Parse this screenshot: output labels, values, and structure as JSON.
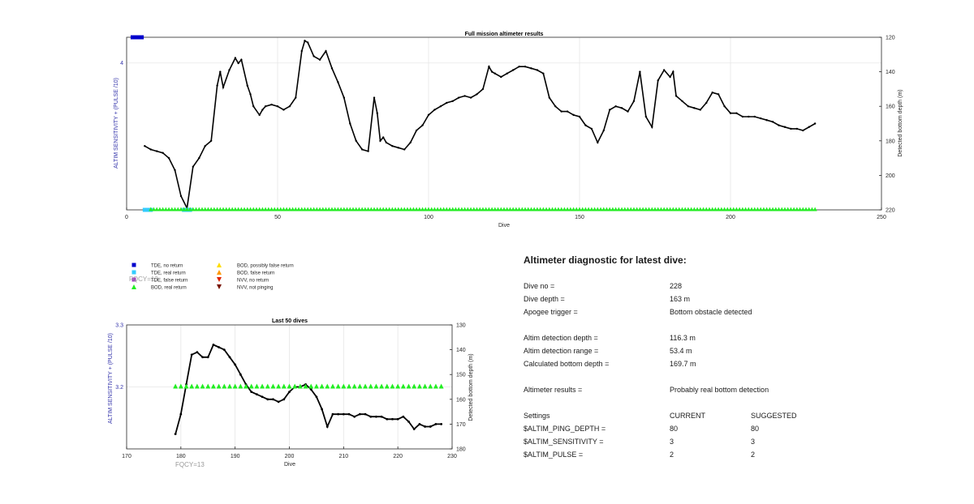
{
  "chart_data": [
    {
      "type": "line",
      "title": "Full mission altimeter results",
      "xlabel": "Dive",
      "ylabel_left": "ALTIM SENSITIVITY + (PULSE /10)",
      "ylabel_right": "Detected bottom depth (m)",
      "xlim": [
        0,
        250
      ],
      "xticks": [
        0,
        50,
        100,
        150,
        200,
        250
      ],
      "ylim_left": [
        0,
        4.7
      ],
      "yticks_left": [
        4
      ],
      "ylim_right": [
        220,
        120
      ],
      "yticks_right": [
        120,
        140,
        160,
        180,
        200,
        220
      ],
      "grid": true,
      "series": [
        {
          "name": "Detected bottom depth",
          "axis": "right",
          "color": "#000000",
          "x": [
            6,
            8,
            10,
            12,
            14,
            16,
            18,
            20,
            22,
            24,
            26,
            28,
            30,
            31,
            32,
            34,
            36,
            37,
            38,
            40,
            41,
            42,
            44,
            45,
            46,
            48,
            50,
            52,
            54,
            56,
            58,
            59,
            60,
            62,
            64,
            66,
            68,
            70,
            72,
            74,
            76,
            78,
            80,
            82,
            83,
            84,
            85,
            86,
            88,
            90,
            92,
            94,
            96,
            98,
            100,
            102,
            104,
            106,
            108,
            110,
            112,
            114,
            116,
            118,
            120,
            121,
            122,
            124,
            126,
            128,
            130,
            132,
            134,
            136,
            138,
            140,
            142,
            144,
            146,
            148,
            150,
            152,
            154,
            156,
            158,
            160,
            162,
            164,
            166,
            168,
            170,
            172,
            174,
            176,
            178,
            180,
            181,
            182,
            184,
            186,
            188,
            190,
            192,
            194,
            196,
            198,
            200,
            202,
            204,
            206,
            208,
            210,
            212,
            214,
            216,
            218,
            220,
            222,
            224,
            226,
            228
          ],
          "y": [
            183,
            185,
            186,
            187,
            190,
            197,
            212,
            219,
            195,
            190,
            183,
            180,
            148,
            140,
            149,
            139,
            132,
            135,
            133,
            148,
            153,
            160,
            165,
            162,
            160,
            159,
            160,
            162,
            160,
            155,
            128,
            122,
            123,
            131,
            133,
            128,
            138,
            146,
            155,
            170,
            180,
            185,
            186,
            155,
            164,
            180,
            178,
            181,
            183,
            184,
            185,
            181,
            174,
            171,
            165,
            162,
            160,
            158,
            157,
            155,
            154,
            155,
            153,
            150,
            137,
            140,
            141,
            143,
            141,
            139,
            137,
            137,
            138,
            139,
            141,
            155,
            160,
            163,
            163,
            165,
            166,
            171,
            173,
            181,
            174,
            162,
            160,
            161,
            163,
            157,
            140,
            166,
            172,
            145,
            139,
            143,
            140,
            154,
            157,
            160,
            161,
            162,
            158,
            152,
            153,
            160,
            164,
            164,
            166,
            166,
            166,
            167,
            168,
            169,
            171,
            172,
            173,
            173,
            174,
            172,
            170
          ],
          "show_markers": true
        },
        {
          "name": "TDE, real return",
          "axis": "left",
          "color": "#33ccff",
          "marker": "square",
          "x": [
            6,
            7,
            8,
            19,
            20,
            21
          ],
          "y": [
            0,
            0,
            0,
            0,
            0,
            0
          ]
        },
        {
          "name": "BOD, real return",
          "axis": "left",
          "color": "#22ee22",
          "marker": "triangle",
          "x_range": [
            8,
            228
          ],
          "y": 0
        },
        {
          "name": "ALTIM setting",
          "axis": "left",
          "color": "#0000cc",
          "marker": "square",
          "x": [
            2,
            3,
            4,
            5
          ],
          "y": [
            4.7,
            4.7,
            4.7,
            4.7
          ]
        }
      ]
    },
    {
      "type": "line",
      "title": "Last 50 dives",
      "xlabel": "Dive",
      "ylabel_left": "ALTIM SENSITIVITY + (PULSE /10)",
      "ylabel_right": "Detected bottom depth (m)",
      "xlim": [
        170,
        230
      ],
      "xticks": [
        170,
        180,
        190,
        200,
        210,
        220,
        230
      ],
      "ylim_left": [
        3.1,
        3.3
      ],
      "yticks_left": [
        3.2,
        3.3
      ],
      "ylim_right": [
        180,
        130
      ],
      "yticks_right": [
        130,
        140,
        150,
        160,
        170,
        180
      ],
      "grid": true,
      "series": [
        {
          "name": "Detected bottom depth",
          "axis": "right",
          "color": "#000000",
          "x": [
            179,
            180,
            181,
            182,
            183,
            184,
            185,
            186,
            187,
            188,
            189,
            190,
            191,
            192,
            193,
            194,
            195,
            196,
            197,
            198,
            199,
            200,
            201,
            202,
            203,
            204,
            205,
            206,
            207,
            208,
            209,
            210,
            211,
            212,
            213,
            214,
            215,
            216,
            217,
            218,
            219,
            220,
            221,
            222,
            223,
            224,
            225,
            226,
            227,
            228
          ],
          "y": [
            174,
            166,
            154,
            142,
            141,
            143,
            143,
            138,
            139,
            140,
            143,
            146,
            150,
            154,
            157,
            158,
            159,
            160,
            160,
            161,
            160,
            157,
            155,
            155,
            154,
            156,
            159,
            164,
            171,
            166,
            166,
            166,
            166,
            167,
            166,
            166,
            167,
            167,
            167,
            168,
            168,
            168,
            167,
            169,
            172,
            170,
            171,
            171,
            170,
            170
          ]
        },
        {
          "name": "BOD, real return",
          "axis": "left",
          "color": "#22ee22",
          "marker": "triangle",
          "x_range": [
            179,
            228
          ],
          "y": 3.2
        }
      ],
      "annotation": "FQCY=13"
    }
  ],
  "legend": {
    "items": [
      {
        "label": "TDE, no return",
        "marker": "square",
        "color": "#0000cc"
      },
      {
        "label": "TDE, real return",
        "marker": "square",
        "color": "#33ccff"
      },
      {
        "label": "TDE, false return",
        "marker": "square",
        "color": "#a040c0"
      },
      {
        "label": "BOD, real return",
        "marker": "triangle",
        "color": "#22ee22"
      },
      {
        "label": "BOD, possibly false return",
        "marker": "triangle",
        "color": "#ffdd00"
      },
      {
        "label": "BOD, false return",
        "marker": "triangle",
        "color": "#ff9900"
      },
      {
        "label": "NVV, no return",
        "marker": "triangle-down",
        "color": "#dd2200"
      },
      {
        "label": "NVV, not pinging",
        "marker": "triangle-down",
        "color": "#771100"
      }
    ],
    "overlay_text": "FQCY=13"
  },
  "diagnostic": {
    "title": "Altimeter diagnostic for latest dive:",
    "dive_no_label": "Dive no =",
    "dive_no": "228",
    "dive_depth_label": "Dive depth =",
    "dive_depth": "163 m",
    "apogee_label": "Apogee trigger =",
    "apogee": "Bottom obstacle detected",
    "det_depth_label": "Altim detection depth =",
    "det_depth": "116.3 m",
    "det_range_label": "Altim detection range =",
    "det_range": "53.4 m",
    "calc_depth_label": "Calculated bottom depth =",
    "calc_depth": "169.7 m",
    "results_label": "Altimeter results =",
    "results": "Probably real bottom detection",
    "settings_label": "Settings",
    "current_label": "CURRENT",
    "suggested_label": "SUGGESTED",
    "settings": [
      {
        "name": "$ALTIM_PING_DEPTH =",
        "current": "80",
        "suggested": "80"
      },
      {
        "name": "$ALTIM_SENSITIVITY =",
        "current": "3",
        "suggested": "3"
      },
      {
        "name": "$ALTIM_PULSE =",
        "current": "2",
        "suggested": "2"
      }
    ]
  },
  "colors": {
    "axis": "#262626",
    "grid": "#e6e6e6",
    "left_axis_label": "#3333aa",
    "fqcy_text": "#999999"
  }
}
